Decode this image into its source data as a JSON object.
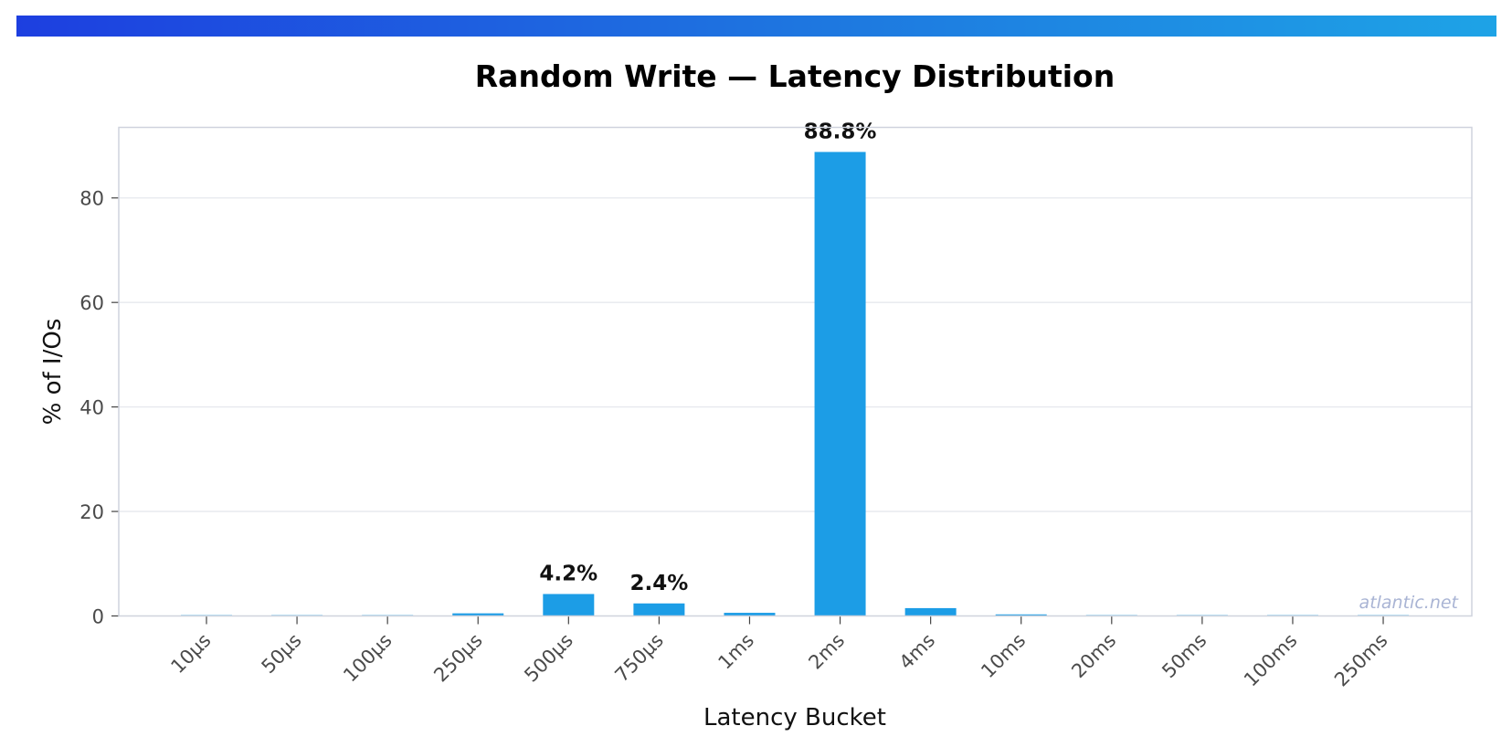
{
  "chart_data": {
    "type": "bar",
    "title": "Random Write — Latency Distribution",
    "xlabel": "Latency Bucket",
    "ylabel": "% of I/Os",
    "categories": [
      "10µs",
      "50µs",
      "100µs",
      "250µs",
      "500µs",
      "750µs",
      "1ms",
      "2ms",
      "4ms",
      "10ms",
      "20ms",
      "50ms",
      "100ms",
      "250ms"
    ],
    "values": [
      0.05,
      0.05,
      0.05,
      0.5,
      4.2,
      2.4,
      0.6,
      88.8,
      1.5,
      0.3,
      0.05,
      0.05,
      0.05,
      0.05
    ],
    "data_labels": [
      {
        "category": "500µs",
        "text": "4.2%"
      },
      {
        "category": "750µs",
        "text": "2.4%"
      },
      {
        "category": "2ms",
        "text": "88.8%"
      }
    ],
    "ylim": [
      0,
      93.5
    ],
    "yticks": [
      0,
      20,
      40,
      60,
      80
    ],
    "grid": true,
    "bar_color": "#1c9de6",
    "watermark": "atlantic.net"
  }
}
